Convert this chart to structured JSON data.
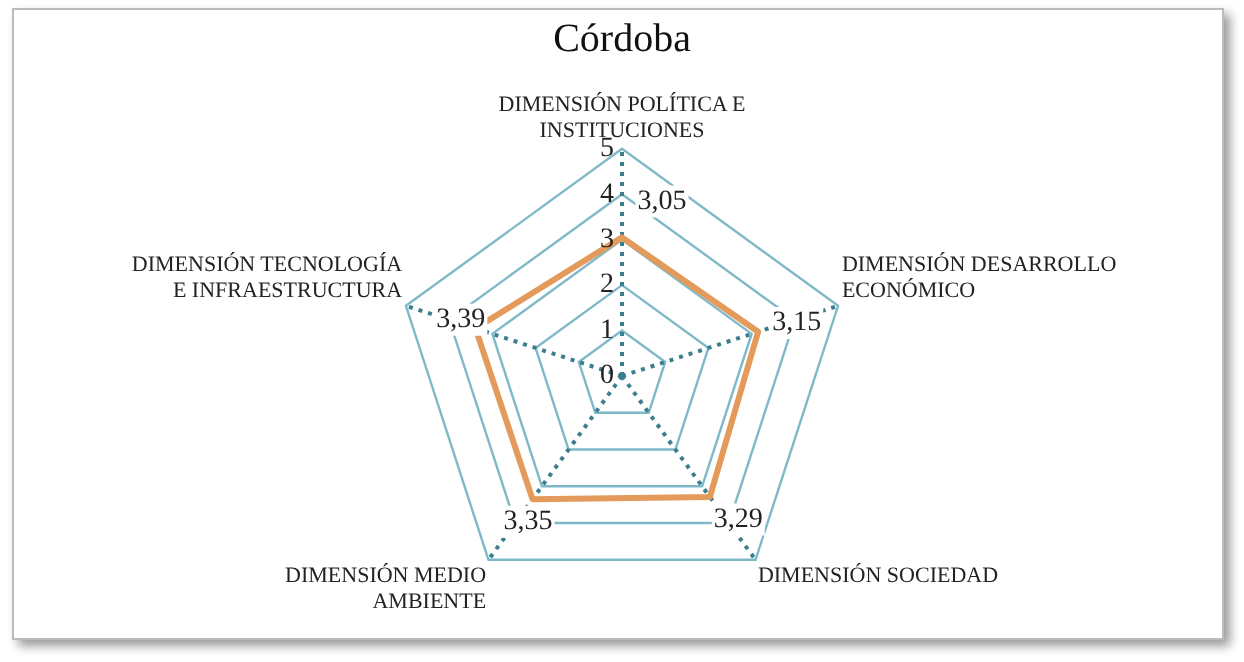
{
  "chart_data": {
    "type": "radar",
    "title": "Córdoba",
    "categories": [
      "DIMENSIÓN POLÍTICA E INSTITUCIONES",
      "DIMENSIÓN DESARROLLO ECONÓMICO",
      "DIMENSIÓN SOCIEDAD",
      "DIMENSIÓN MEDIO AMBIENTE",
      "DIMENSIÓN TECNOLOGÍA E INFRAESTRUCTURA"
    ],
    "series": [
      {
        "color": "#e39a5a",
        "values": [
          3.05,
          3.15,
          3.29,
          3.35,
          3.39
        ],
        "value_labels": [
          "3,05",
          "3,15",
          "3,29",
          "3,35",
          "3,39"
        ]
      }
    ],
    "ylim": [
      0,
      5
    ],
    "yticks": [
      0,
      1,
      2,
      3,
      4,
      5
    ],
    "grid": true,
    "legend": false,
    "marker": "none"
  }
}
